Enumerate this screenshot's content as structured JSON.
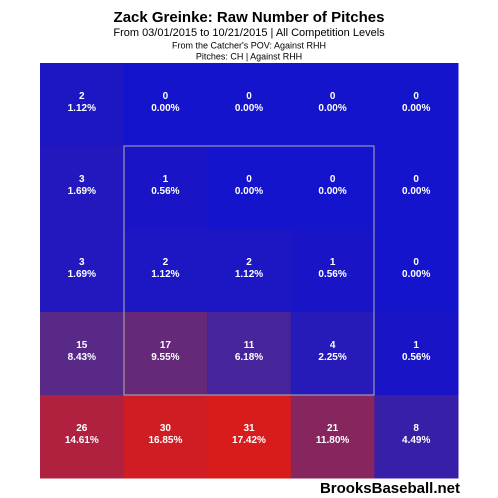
{
  "chart_data": {
    "type": "heatmap",
    "title": "Zack Greinke: Raw Number of Pitches",
    "subtitle": "From 03/01/2015 to 10/21/2015 | All Competition Levels",
    "notes": [
      "From the Catcher's POV:  Against RHH",
      "Pitches: CH  |  Against RHH"
    ],
    "values": [
      [
        2,
        0,
        0,
        0,
        0
      ],
      [
        3,
        1,
        0,
        0,
        0
      ],
      [
        3,
        2,
        2,
        1,
        0
      ],
      [
        15,
        17,
        11,
        4,
        1
      ],
      [
        26,
        30,
        31,
        21,
        8
      ]
    ],
    "percents": [
      [
        1.12,
        0,
        0,
        0,
        0
      ],
      [
        1.69,
        0.56,
        0,
        0,
        0
      ],
      [
        1.69,
        1.12,
        1.12,
        0.56,
        0
      ],
      [
        8.43,
        9.55,
        6.18,
        2.25,
        0.56
      ],
      [
        14.61,
        16.85,
        17.42,
        11.8,
        4.49
      ]
    ],
    "percent_labels": [
      [
        "1.12%",
        "0.00%",
        "0.00%",
        "0.00%",
        "0.00%"
      ],
      [
        "1.69%",
        "0.56%",
        "0.00%",
        "0.00%",
        "0.00%"
      ],
      [
        "1.69%",
        "1.12%",
        "1.12%",
        "0.56%",
        "0.00%"
      ],
      [
        "8.43%",
        "9.55%",
        "6.18%",
        "2.25%",
        "0.56%"
      ],
      [
        "14.61%",
        "16.85%",
        "17.42%",
        "11.80%",
        "4.49%"
      ]
    ],
    "color_stops": [
      "#1414cc",
      "#5a2a84",
      "#d81c1c"
    ],
    "footer": "BrooksBaseball.net"
  }
}
